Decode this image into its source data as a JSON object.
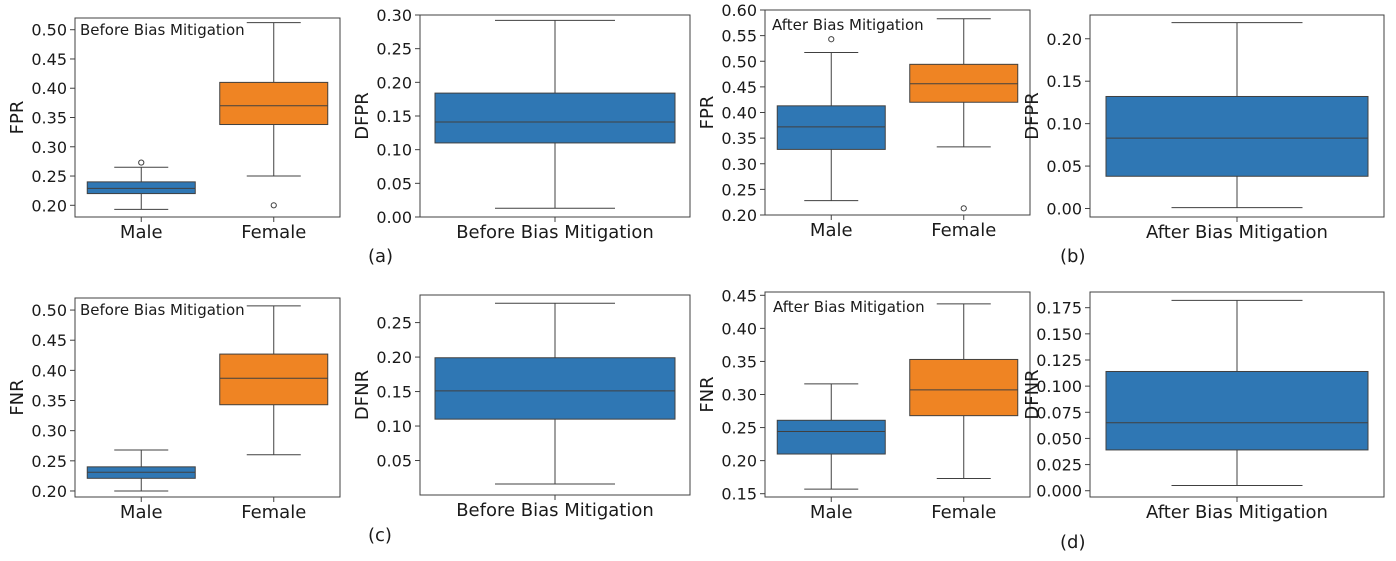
{
  "colors": {
    "male": "#2f77b4",
    "female": "#ef8423",
    "line": "#404040",
    "frame": "#404040"
  },
  "panel_letters": [
    "(a)",
    "(b)",
    "(c)",
    "(d)"
  ],
  "chart_data": [
    {
      "type": "box",
      "title": "Before Bias Mitigation",
      "ylabel": "FPR",
      "ylim": [
        0.18,
        0.52
      ],
      "yticks": [
        "0.20",
        "0.25",
        "0.30",
        "0.35",
        "0.40",
        "0.45",
        "0.50"
      ],
      "categories": [
        "Male",
        "Female"
      ],
      "boxes": [
        {
          "category": "Male",
          "min": 0.193,
          "q1": 0.22,
          "median": 0.229,
          "q3": 0.24,
          "max": 0.265,
          "outliers": [
            0.273
          ]
        },
        {
          "category": "Female",
          "min": 0.25,
          "q1": 0.338,
          "median": 0.37,
          "q3": 0.41,
          "max": 0.512,
          "outliers": [
            0.2
          ]
        }
      ]
    },
    {
      "type": "box",
      "title": "",
      "ylabel": "DFPR",
      "ylim": [
        0.0,
        0.3
      ],
      "yticks": [
        "0.00",
        "0.05",
        "0.10",
        "0.15",
        "0.20",
        "0.25",
        "0.30"
      ],
      "categories": [
        "Before Bias Mitigation"
      ],
      "boxes": [
        {
          "category": "Before Bias Mitigation",
          "min": 0.013,
          "q1": 0.11,
          "median": 0.141,
          "q3": 0.184,
          "max": 0.292,
          "outliers": []
        }
      ]
    },
    {
      "type": "box",
      "title": "After Bias Mitigation",
      "ylabel": "FPR",
      "ylim": [
        0.2,
        0.6
      ],
      "yticks": [
        "0.20",
        "0.25",
        "0.30",
        "0.35",
        "0.40",
        "0.45",
        "0.50",
        "0.55",
        "0.60"
      ],
      "categories": [
        "Male",
        "Female"
      ],
      "boxes": [
        {
          "category": "Male",
          "min": 0.228,
          "q1": 0.328,
          "median": 0.372,
          "q3": 0.413,
          "max": 0.517,
          "outliers": [
            0.543
          ]
        },
        {
          "category": "Female",
          "min": 0.333,
          "q1": 0.42,
          "median": 0.456,
          "q3": 0.494,
          "max": 0.583,
          "outliers": [
            0.213
          ]
        }
      ]
    },
    {
      "type": "box",
      "title": "",
      "ylabel": "DFPR",
      "ylim": [
        -0.01,
        0.228
      ],
      "yticks": [
        "0.00",
        "0.05",
        "0.10",
        "0.15",
        "0.20"
      ],
      "categories": [
        "After Bias Mitigation"
      ],
      "boxes": [
        {
          "category": "After Bias Mitigation",
          "min": 0.001,
          "q1": 0.038,
          "median": 0.083,
          "q3": 0.132,
          "max": 0.219,
          "outliers": []
        }
      ]
    },
    {
      "type": "box",
      "title": "Before Bias Mitigation",
      "ylabel": "FNR",
      "ylim": [
        0.19,
        0.52
      ],
      "yticks": [
        "0.20",
        "0.25",
        "0.30",
        "0.35",
        "0.40",
        "0.45",
        "0.50"
      ],
      "categories": [
        "Male",
        "Female"
      ],
      "boxes": [
        {
          "category": "Male",
          "min": 0.2,
          "q1": 0.221,
          "median": 0.231,
          "q3": 0.24,
          "max": 0.268,
          "outliers": []
        },
        {
          "category": "Female",
          "min": 0.26,
          "q1": 0.343,
          "median": 0.387,
          "q3": 0.427,
          "max": 0.507,
          "outliers": []
        }
      ]
    },
    {
      "type": "box",
      "title": "",
      "ylabel": "DFNR",
      "ylim": [
        0.0,
        0.29
      ],
      "yticks": [
        "0.05",
        "0.10",
        "0.15",
        "0.20",
        "0.25"
      ],
      "categories": [
        "Before Bias Mitigation"
      ],
      "boxes": [
        {
          "category": "Before Bias Mitigation",
          "min": 0.016,
          "q1": 0.11,
          "median": 0.151,
          "q3": 0.199,
          "max": 0.278,
          "outliers": []
        }
      ]
    },
    {
      "type": "box",
      "title": "After Bias Mitigation",
      "ylabel": "FNR",
      "ylim": [
        0.145,
        0.455
      ],
      "yticks": [
        "0.15",
        "0.20",
        "0.25",
        "0.30",
        "0.35",
        "0.40",
        "0.45"
      ],
      "categories": [
        "Male",
        "Female"
      ],
      "boxes": [
        {
          "category": "Male",
          "min": 0.157,
          "q1": 0.21,
          "median": 0.244,
          "q3": 0.261,
          "max": 0.316,
          "outliers": []
        },
        {
          "category": "Female",
          "min": 0.173,
          "q1": 0.268,
          "median": 0.307,
          "q3": 0.353,
          "max": 0.437,
          "outliers": []
        }
      ]
    },
    {
      "type": "box",
      "title": "",
      "ylabel": "DFNR",
      "ylim": [
        -0.006,
        0.19
      ],
      "yticks": [
        "0.000",
        "0.025",
        "0.050",
        "0.075",
        "0.100",
        "0.125",
        "0.150",
        "0.175"
      ],
      "categories": [
        "After Bias Mitigation"
      ],
      "boxes": [
        {
          "category": "After Bias Mitigation",
          "min": 0.005,
          "q1": 0.039,
          "median": 0.065,
          "q3": 0.114,
          "max": 0.182,
          "outliers": []
        }
      ]
    }
  ]
}
